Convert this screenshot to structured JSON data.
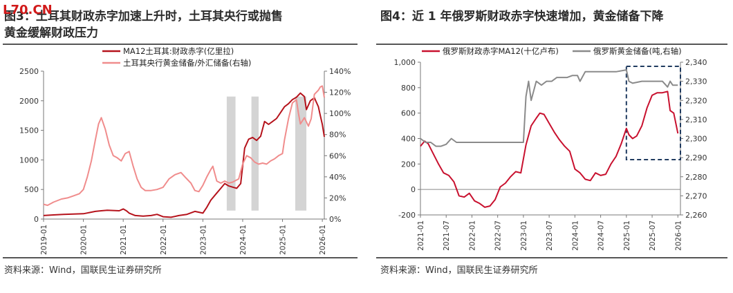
{
  "left": {
    "title_line1": "图3：土耳其财政赤字加速上升时，土耳其央行或抛售",
    "title_line2": "黄金缓解财政压力",
    "source": "资料来源：Wind，国联民生证券研究所",
    "chart_data": {
      "type": "line",
      "title": "图3：土耳其财政赤字加速上升时，土耳其央行或抛售黄金缓解财政压力",
      "x_tick_labels": [
        "2019-01",
        "2020-01",
        "2021-01",
        "2022-01",
        "2023-01",
        "2024-01",
        "2025-01",
        "2026-01"
      ],
      "x_range": [
        2019.0,
        2026.05
      ],
      "y_left_ticks": [
        "0",
        "500",
        "1000",
        "1500",
        "2000",
        "2500"
      ],
      "y_left_range": [
        0,
        2500
      ],
      "y_right_ticks": [
        "0%",
        "20%",
        "40%",
        "60%",
        "80%",
        "100%",
        "120%",
        "140%"
      ],
      "y_right_range": [
        0,
        140
      ],
      "series": [
        {
          "name": "MA12土耳其:财政赤字(亿里拉)",
          "axis": "left",
          "color": "#b5121b",
          "points": [
            [
              2019.0,
              60
            ],
            [
              2019.25,
              70
            ],
            [
              2019.5,
              80
            ],
            [
              2019.75,
              85
            ],
            [
              2020.0,
              90
            ],
            [
              2020.15,
              110
            ],
            [
              2020.3,
              130
            ],
            [
              2020.45,
              140
            ],
            [
              2020.6,
              150
            ],
            [
              2020.75,
              145
            ],
            [
              2020.9,
              140
            ],
            [
              2021.0,
              170
            ],
            [
              2021.08,
              140
            ],
            [
              2021.15,
              100
            ],
            [
              2021.3,
              60
            ],
            [
              2021.5,
              50
            ],
            [
              2021.7,
              60
            ],
            [
              2021.85,
              80
            ],
            [
              2022.0,
              40
            ],
            [
              2022.2,
              30
            ],
            [
              2022.4,
              60
            ],
            [
              2022.6,
              80
            ],
            [
              2022.8,
              130
            ],
            [
              2023.0,
              100
            ],
            [
              2023.1,
              200
            ],
            [
              2023.2,
              320
            ],
            [
              2023.35,
              440
            ],
            [
              2023.45,
              520
            ],
            [
              2023.55,
              600
            ],
            [
              2023.65,
              560
            ],
            [
              2023.75,
              540
            ],
            [
              2023.85,
              520
            ],
            [
              2023.95,
              600
            ],
            [
              2024.05,
              1200
            ],
            [
              2024.15,
              1350
            ],
            [
              2024.25,
              1380
            ],
            [
              2024.35,
              1330
            ],
            [
              2024.45,
              1400
            ],
            [
              2024.55,
              1650
            ],
            [
              2024.65,
              1600
            ],
            [
              2024.75,
              1650
            ],
            [
              2024.85,
              1700
            ],
            [
              2024.95,
              1800
            ],
            [
              2025.05,
              1900
            ],
            [
              2025.15,
              1950
            ],
            [
              2025.25,
              2020
            ],
            [
              2025.35,
              2060
            ],
            [
              2025.45,
              2130
            ],
            [
              2025.55,
              2070
            ],
            [
              2025.6,
              1850
            ],
            [
              2025.7,
              2000
            ],
            [
              2025.8,
              2050
            ],
            [
              2025.9,
              1900
            ],
            [
              2025.95,
              1750
            ],
            [
              2026.0,
              1600
            ],
            [
              2026.05,
              1390
            ]
          ]
        },
        {
          "name": "土耳其央行黄金储备/外汇储备(右轴)",
          "axis": "right",
          "color": "#f08c8c",
          "points": [
            [
              2019.0,
              14
            ],
            [
              2019.1,
              13
            ],
            [
              2019.25,
              16
            ],
            [
              2019.45,
              19
            ],
            [
              2019.6,
              20
            ],
            [
              2019.75,
              22
            ],
            [
              2019.9,
              24
            ],
            [
              2020.0,
              28
            ],
            [
              2020.1,
              40
            ],
            [
              2020.2,
              55
            ],
            [
              2020.3,
              75
            ],
            [
              2020.38,
              90
            ],
            [
              2020.45,
              96
            ],
            [
              2020.55,
              85
            ],
            [
              2020.65,
              70
            ],
            [
              2020.75,
              60
            ],
            [
              2020.85,
              58
            ],
            [
              2020.95,
              55
            ],
            [
              2021.05,
              62
            ],
            [
              2021.15,
              64
            ],
            [
              2021.25,
              50
            ],
            [
              2021.35,
              38
            ],
            [
              2021.45,
              30
            ],
            [
              2021.55,
              27
            ],
            [
              2021.7,
              27
            ],
            [
              2021.85,
              28
            ],
            [
              2022.0,
              30
            ],
            [
              2022.15,
              38
            ],
            [
              2022.3,
              42
            ],
            [
              2022.45,
              44
            ],
            [
              2022.55,
              40
            ],
            [
              2022.7,
              34
            ],
            [
              2022.8,
              27
            ],
            [
              2022.9,
              26
            ],
            [
              2023.0,
              32
            ],
            [
              2023.1,
              40
            ],
            [
              2023.2,
              47
            ],
            [
              2023.25,
              50
            ],
            [
              2023.35,
              36
            ],
            [
              2023.45,
              34
            ],
            [
              2023.55,
              36
            ],
            [
              2023.65,
              34
            ],
            [
              2023.75,
              35
            ],
            [
              2023.9,
              38
            ],
            [
              2024.0,
              52
            ],
            [
              2024.1,
              60
            ],
            [
              2024.2,
              58
            ],
            [
              2024.3,
              54
            ],
            [
              2024.4,
              52
            ],
            [
              2024.5,
              53
            ],
            [
              2024.6,
              52
            ],
            [
              2024.7,
              55
            ],
            [
              2024.8,
              57
            ],
            [
              2024.9,
              60
            ],
            [
              2025.0,
              62
            ],
            [
              2025.05,
              75
            ],
            [
              2025.15,
              95
            ],
            [
              2025.25,
              110
            ],
            [
              2025.35,
              113
            ],
            [
              2025.4,
              100
            ],
            [
              2025.45,
              90
            ],
            [
              2025.55,
              96
            ],
            [
              2025.65,
              88
            ],
            [
              2025.72,
              95
            ],
            [
              2025.8,
              118
            ],
            [
              2025.9,
              122
            ],
            [
              2025.95,
              125
            ],
            [
              2026.0,
              126
            ],
            [
              2026.05,
              115
            ]
          ]
        }
      ],
      "shaded_periods": [
        [
          2023.6,
          2023.82
        ],
        [
          2024.22,
          2024.4
        ],
        [
          2025.32,
          2025.6
        ]
      ],
      "legend": "top-center",
      "shade_color": "#d4d4d4"
    }
  },
  "right": {
    "title_line1": "图4：近 1 年俄罗斯财政赤字快速增加，黄金储备下降",
    "source": "资料来源：Wind，国联民生证券研究所",
    "chart_data": {
      "type": "line",
      "title": "图4：近 1 年俄罗斯财政赤字快速增加，黄金储备下降",
      "x_tick_labels": [
        "2021-01",
        "2021-07",
        "2022-01",
        "2022-07",
        "2023-01",
        "2023-07",
        "2024-01",
        "2024-07",
        "2025-01",
        "2025-07",
        "2026-01"
      ],
      "x_range": [
        2021.0,
        2026.05
      ],
      "y_left_ticks": [
        "-200",
        "0",
        "200",
        "400",
        "600",
        "800",
        "1,000"
      ],
      "y_left_range": [
        -200,
        1000
      ],
      "y_right_ticks": [
        "2,260",
        "2,270",
        "2,280",
        "2,290",
        "2,300",
        "2,310",
        "2,320",
        "2,330",
        "2,340"
      ],
      "y_right_range": [
        2260,
        2340
      ],
      "series": [
        {
          "name": "俄罗斯财政赤字MA12(十亿卢布)",
          "axis": "left",
          "color": "#c8102e",
          "points": [
            [
              2021.0,
              340
            ],
            [
              2021.08,
              380
            ],
            [
              2021.15,
              360
            ],
            [
              2021.25,
              280
            ],
            [
              2021.35,
              200
            ],
            [
              2021.45,
              130
            ],
            [
              2021.55,
              110
            ],
            [
              2021.65,
              60
            ],
            [
              2021.75,
              -50
            ],
            [
              2021.85,
              -60
            ],
            [
              2021.95,
              -30
            ],
            [
              2022.05,
              -90
            ],
            [
              2022.15,
              -110
            ],
            [
              2022.25,
              -140
            ],
            [
              2022.35,
              -130
            ],
            [
              2022.45,
              -80
            ],
            [
              2022.55,
              20
            ],
            [
              2022.65,
              50
            ],
            [
              2022.75,
              100
            ],
            [
              2022.85,
              140
            ],
            [
              2022.95,
              130
            ],
            [
              2023.05,
              350
            ],
            [
              2023.15,
              500
            ],
            [
              2023.25,
              560
            ],
            [
              2023.32,
              600
            ],
            [
              2023.4,
              590
            ],
            [
              2023.5,
              520
            ],
            [
              2023.6,
              450
            ],
            [
              2023.7,
              390
            ],
            [
              2023.8,
              340
            ],
            [
              2023.9,
              300
            ],
            [
              2024.0,
              160
            ],
            [
              2024.1,
              130
            ],
            [
              2024.2,
              80
            ],
            [
              2024.3,
              70
            ],
            [
              2024.4,
              130
            ],
            [
              2024.5,
              110
            ],
            [
              2024.6,
              120
            ],
            [
              2024.7,
              200
            ],
            [
              2024.8,
              260
            ],
            [
              2024.9,
              360
            ],
            [
              2025.0,
              480
            ],
            [
              2025.05,
              430
            ],
            [
              2025.12,
              400
            ],
            [
              2025.2,
              420
            ],
            [
              2025.3,
              500
            ],
            [
              2025.4,
              640
            ],
            [
              2025.5,
              740
            ],
            [
              2025.6,
              760
            ],
            [
              2025.7,
              760
            ],
            [
              2025.8,
              770
            ],
            [
              2025.85,
              620
            ],
            [
              2025.92,
              600
            ],
            [
              2026.0,
              440
            ]
          ]
        },
        {
          "name": "俄罗斯黄金储备(吨,右轴)",
          "axis": "right",
          "color": "#8a8a8a",
          "points": [
            [
              2021.0,
              2300
            ],
            [
              2021.1,
              2298
            ],
            [
              2021.2,
              2298
            ],
            [
              2021.3,
              2296
            ],
            [
              2021.4,
              2296
            ],
            [
              2021.5,
              2297
            ],
            [
              2021.6,
              2300
            ],
            [
              2021.7,
              2298
            ],
            [
              2021.8,
              2298
            ],
            [
              2021.9,
              2298
            ],
            [
              2022.0,
              2298
            ],
            [
              2022.5,
              2298
            ],
            [
              2022.9,
              2298
            ],
            [
              2023.0,
              2298
            ],
            [
              2023.05,
              2322
            ],
            [
              2023.1,
              2330
            ],
            [
              2023.15,
              2320
            ],
            [
              2023.25,
              2330
            ],
            [
              2023.35,
              2328
            ],
            [
              2023.45,
              2330
            ],
            [
              2023.55,
              2330
            ],
            [
              2023.65,
              2332
            ],
            [
              2023.75,
              2332
            ],
            [
              2023.85,
              2332
            ],
            [
              2023.95,
              2333
            ],
            [
              2024.05,
              2333
            ],
            [
              2024.1,
              2330
            ],
            [
              2024.2,
              2335
            ],
            [
              2024.4,
              2335
            ],
            [
              2024.6,
              2335
            ],
            [
              2024.8,
              2335
            ],
            [
              2025.0,
              2336
            ],
            [
              2025.05,
              2330
            ],
            [
              2025.12,
              2329
            ],
            [
              2025.3,
              2330
            ],
            [
              2025.5,
              2330
            ],
            [
              2025.6,
              2330
            ],
            [
              2025.7,
              2330
            ],
            [
              2025.8,
              2327
            ],
            [
              2025.85,
              2330
            ],
            [
              2025.9,
              2328
            ],
            [
              2026.0,
              2328
            ]
          ]
        }
      ],
      "highlight_box": [
        2025.0,
        2026.05
      ],
      "legend": "top"
    }
  },
  "logo": "L70.CN"
}
